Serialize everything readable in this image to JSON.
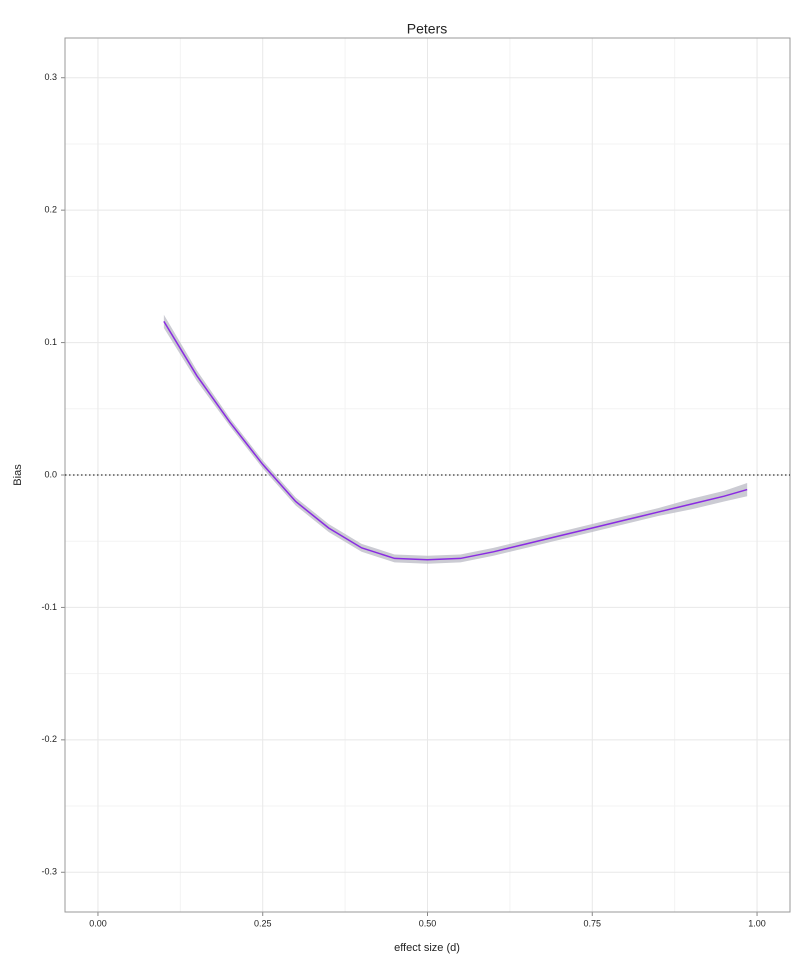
{
  "chart_data": {
    "type": "line",
    "title": "Peters",
    "x_label": "effect size (d)",
    "y_label": "Bias",
    "xlim": [
      -0.05,
      1.05
    ],
    "ylim": [
      -0.33,
      0.33
    ],
    "xticks": [
      {
        "value": 0,
        "label": "0.00"
      },
      {
        "value": 0.25,
        "label": "0.25"
      },
      {
        "value": 0.5,
        "label": "0.50"
      },
      {
        "value": 0.75,
        "label": "0.75"
      },
      {
        "value": 1,
        "label": "1.00"
      }
    ],
    "yticks": [
      -0.3,
      -0.2,
      -0.1,
      {
        "value": 0,
        "label": "0.0"
      },
      0.1,
      0.2,
      0.3
    ],
    "grid": true,
    "hline": 0,
    "ribbon_color": "#b9b9c4",
    "series": [
      {
        "color": "#8a2be2",
        "x": [
          0.1,
          0.15,
          0.2,
          0.25,
          0.3,
          0.35,
          0.4,
          0.45,
          0.5,
          0.55,
          0.6,
          0.65,
          0.7,
          0.75,
          0.8,
          0.85,
          0.9,
          0.95,
          0.985
        ],
        "values": [
          0.116,
          0.075,
          0.04,
          0.008,
          -0.02,
          -0.04,
          -0.055,
          -0.063,
          -0.064,
          -0.063,
          -0.058,
          -0.052,
          -0.046,
          -0.04,
          -0.034,
          -0.028,
          -0.022,
          -0.016,
          -0.011
        ],
        "upper": [
          0.121,
          0.079,
          0.043,
          0.011,
          -0.017,
          -0.037,
          -0.052,
          -0.06,
          -0.061,
          -0.06,
          -0.055,
          -0.049,
          -0.043,
          -0.037,
          -0.031,
          -0.025,
          -0.018,
          -0.012,
          -0.006
        ],
        "lower": [
          0.111,
          0.071,
          0.037,
          0.005,
          -0.023,
          -0.043,
          -0.058,
          -0.066,
          -0.067,
          -0.066,
          -0.061,
          -0.055,
          -0.049,
          -0.043,
          -0.037,
          -0.031,
          -0.026,
          -0.02,
          -0.016
        ]
      }
    ]
  }
}
